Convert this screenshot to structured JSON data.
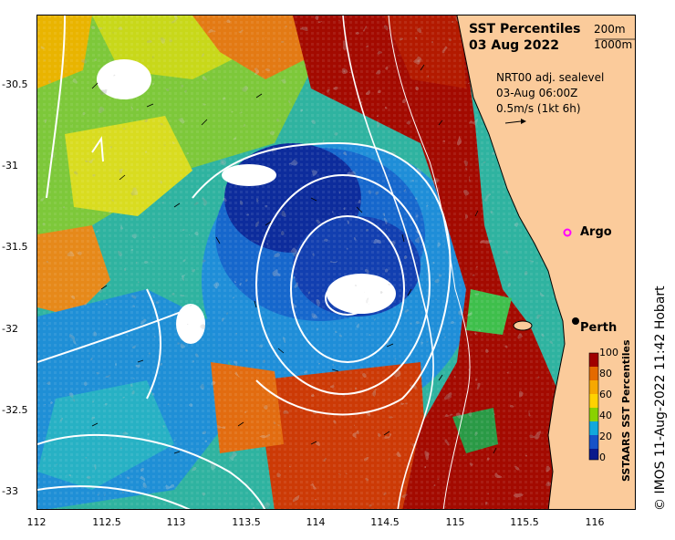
{
  "title": {
    "line1": "SST Percentiles",
    "line2": "03 Aug 2022"
  },
  "isobaths": [
    "200m",
    "1000m"
  ],
  "currents": {
    "line1": "NRT00 adj. sealevel",
    "line2": "03-Aug 06:00Z",
    "line3": "0.5m/s (1kt 6h)"
  },
  "axes": {
    "lat_ticks": [
      "-30.5",
      "-31",
      "-31.5",
      "-32",
      "-32.5",
      "-33"
    ],
    "lon_ticks": [
      "112",
      "112.5",
      "113",
      "113.5",
      "114",
      "114.5",
      "115",
      "115.5",
      "116"
    ]
  },
  "places": {
    "argo": "Argo",
    "perth": "Perth"
  },
  "colorbar": {
    "label": "SSTAARS SST Percentiles",
    "ticks": [
      "100",
      "80",
      "60",
      "40",
      "20",
      "0"
    ],
    "colors": [
      "#a00000",
      "#e46a00",
      "#ffd200",
      "#8ad100",
      "#00b25a",
      "#12a8dc",
      "#1652c8",
      "#0a1a8c"
    ]
  },
  "credit": "© IMOS 11-Aug-2022 11:42 Hobart",
  "colors": {
    "land": "#fbcb9b",
    "argo_marker": "#ff00ff",
    "perth_marker": "#000000"
  }
}
